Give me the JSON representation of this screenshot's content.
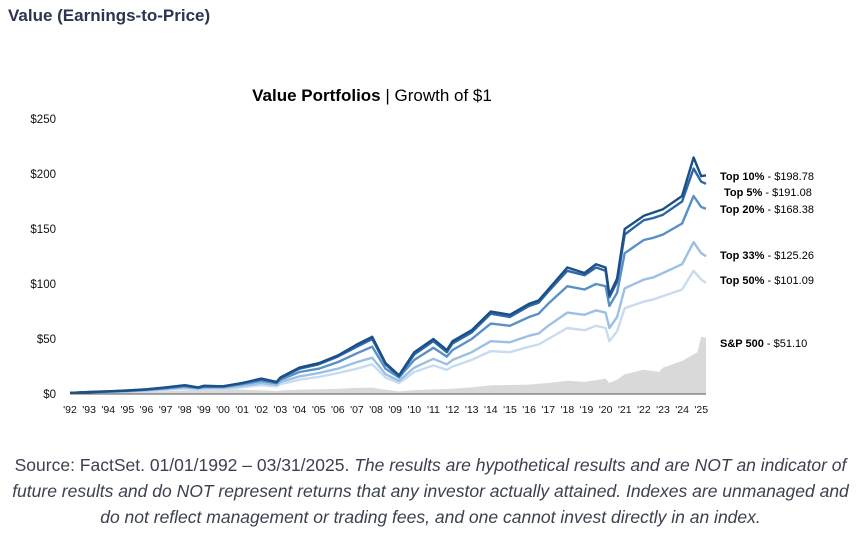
{
  "page": {
    "title": "Value (Earnings-to-Price)",
    "source_lead": "Source: FactSet. 01/01/1992 – 03/31/2025.",
    "source_note": "The results are hypothetical results and are NOT an indicator of future results and do NOT represent returns that any investor actually attained. Indexes are unmanaged and do not reflect management or trading fees, and one cannot invest directly in an index."
  },
  "chart_data": {
    "type": "line",
    "title_bold": "Value Portfolios",
    "title_rest": " | Growth of $1",
    "xlabel": "",
    "ylabel": "",
    "xlim": [
      1992,
      2025.25
    ],
    "ylim": [
      0,
      250
    ],
    "y_ticks": [
      0,
      50,
      100,
      150,
      200,
      250
    ],
    "y_tick_labels": [
      "$0",
      "$50",
      "$100",
      "$150",
      "$200",
      "$250"
    ],
    "x_ticks": [
      1992,
      1993,
      1994,
      1995,
      1996,
      1997,
      1998,
      1999,
      2000,
      2001,
      2002,
      2003,
      2004,
      2005,
      2006,
      2007,
      2008,
      2009,
      2010,
      2011,
      2012,
      2013,
      2014,
      2015,
      2016,
      2017,
      2018,
      2019,
      2020,
      2021,
      2022,
      2023,
      2024,
      2025
    ],
    "x_tick_labels": [
      "'92",
      "'93",
      "'94",
      "'95",
      "'96",
      "'97",
      "'98",
      "'99",
      "'00",
      "'01",
      "'02",
      "'03",
      "'04",
      "'05",
      "'06",
      "'07",
      "'08",
      "'09",
      "'10",
      "'11",
      "'12",
      "'13",
      "'14",
      "'15",
      "'16",
      "'17",
      "'18",
      "'19",
      "'20",
      "'21",
      "'22",
      "'23",
      "'24",
      "'25"
    ],
    "grid": false,
    "legend": "right-end labels",
    "x": [
      1992,
      1993,
      1994,
      1995,
      1996,
      1997,
      1998,
      1998.7,
      1999,
      2000,
      2001,
      2002,
      2002.8,
      2003,
      2004,
      2005,
      2006,
      2007,
      2007.8,
      2008.5,
      2009.2,
      2010,
      2011,
      2011.7,
      2012,
      2013,
      2014,
      2015,
      2016,
      2016.5,
      2017,
      2018,
      2018.9,
      2019.5,
      2020,
      2020.2,
      2020.6,
      2021,
      2022,
      2022.5,
      2023,
      2024,
      2024.6,
      2025,
      2025.25
    ],
    "series": [
      {
        "name": "Top 10%",
        "label_bold": "Top 10%",
        "label_value": " - $198.78",
        "color": "#1b4f86",
        "values": [
          1,
          1.8,
          2.5,
          3.2,
          4.3,
          6,
          8,
          6,
          7.5,
          7,
          10,
          14,
          11,
          15,
          24,
          28,
          35,
          45,
          52,
          28,
          17,
          38,
          50,
          40,
          48,
          58,
          75,
          72,
          82,
          85,
          95,
          115,
          110,
          118,
          115,
          90,
          105,
          150,
          162,
          165,
          168,
          180,
          215,
          198,
          198.78
        ]
      },
      {
        "name": "Top 5%",
        "label_bold": "Top 5%",
        "label_value": " - $191.08",
        "color": "#2c67a8",
        "values": [
          1,
          1.7,
          2.4,
          3.1,
          4.2,
          5.8,
          7.8,
          5.8,
          7.3,
          7,
          9.8,
          13.5,
          10.5,
          14.5,
          23,
          27,
          34,
          43,
          50,
          27,
          16,
          36,
          48,
          38,
          46,
          56,
          73,
          70,
          80,
          83,
          93,
          112,
          108,
          115,
          112,
          88,
          102,
          145,
          158,
          160,
          163,
          175,
          205,
          193,
          191.08
        ]
      },
      {
        "name": "Top 20%",
        "label_bold": "Top 20%",
        "label_value": " - $168.38",
        "color": "#5a90c8",
        "values": [
          1,
          1.6,
          2.2,
          2.8,
          3.8,
          5.2,
          7,
          5.5,
          6.5,
          6.5,
          9,
          12,
          9.8,
          13,
          20,
          23,
          29,
          37,
          43,
          23,
          15,
          31,
          42,
          34,
          40,
          50,
          64,
          62,
          70,
          73,
          82,
          98,
          95,
          100,
          98,
          80,
          92,
          128,
          140,
          142,
          145,
          155,
          180,
          170,
          168.38
        ]
      },
      {
        "name": "Top 33%",
        "label_bold": "Top 33%",
        "label_value": " - $125.26",
        "color": "#9cc0e4",
        "values": [
          1,
          1.5,
          2,
          2.5,
          3.3,
          4.5,
          6,
          4.8,
          5.6,
          5.6,
          7.5,
          10,
          8.3,
          11,
          16,
          19,
          23,
          29,
          33,
          18,
          12,
          24,
          32,
          27,
          31,
          38,
          48,
          47,
          53,
          55,
          62,
          74,
          72,
          76,
          74,
          60,
          70,
          96,
          104,
          106,
          110,
          118,
          138,
          128,
          125.26
        ]
      },
      {
        "name": "Top 50%",
        "label_bold": "Top 50%",
        "label_value": " - $101.09",
        "color": "#c7dcf0",
        "values": [
          1,
          1.4,
          1.8,
          2.2,
          2.9,
          3.8,
          5,
          4.2,
          4.8,
          4.8,
          6.2,
          8.2,
          7,
          9,
          13,
          15.5,
          19,
          23,
          27,
          15,
          10,
          20,
          26,
          22,
          25,
          31,
          39,
          38,
          43,
          45,
          50,
          60,
          58,
          62,
          60,
          48,
          57,
          78,
          84,
          86,
          89,
          95,
          112,
          104,
          101.09
        ]
      }
    ],
    "area_series": {
      "name": "S&P 500",
      "label_bold": "S&P 500",
      "label_value": " - $51.10",
      "color": "#d9d9d9",
      "x": [
        1992,
        1993,
        1994,
        1995,
        1996,
        1997,
        1998,
        1999,
        2000,
        2000.7,
        2001,
        2002,
        2002.8,
        2003,
        2004,
        2005,
        2006,
        2007,
        2007.8,
        2008.5,
        2009.2,
        2010,
        2011,
        2012,
        2013,
        2014,
        2015,
        2016,
        2017,
        2018,
        2018.9,
        2019.5,
        2020,
        2020.2,
        2020.6,
        2021,
        2022,
        2022.8,
        2023,
        2024,
        2024.8,
        2025,
        2025.25
      ],
      "values": [
        1,
        1.1,
        1.15,
        1.5,
        1.9,
        2.5,
        3.3,
        4,
        4.6,
        4.4,
        4,
        3.4,
        2.7,
        3.3,
        4,
        4.2,
        4.8,
        5.5,
        5.8,
        3.8,
        2.4,
        3.5,
        4.2,
        4.8,
        6,
        7.8,
        8.2,
        8.5,
        10,
        12,
        11,
        12.5,
        14,
        10,
        13,
        18,
        22,
        20,
        24,
        30,
        38,
        52,
        51.1
      ]
    },
    "end_labels_order": [
      "Top 10%",
      "Top 5%",
      "Top 20%",
      "Top 33%",
      "Top 50%",
      "S&P 500"
    ]
  }
}
